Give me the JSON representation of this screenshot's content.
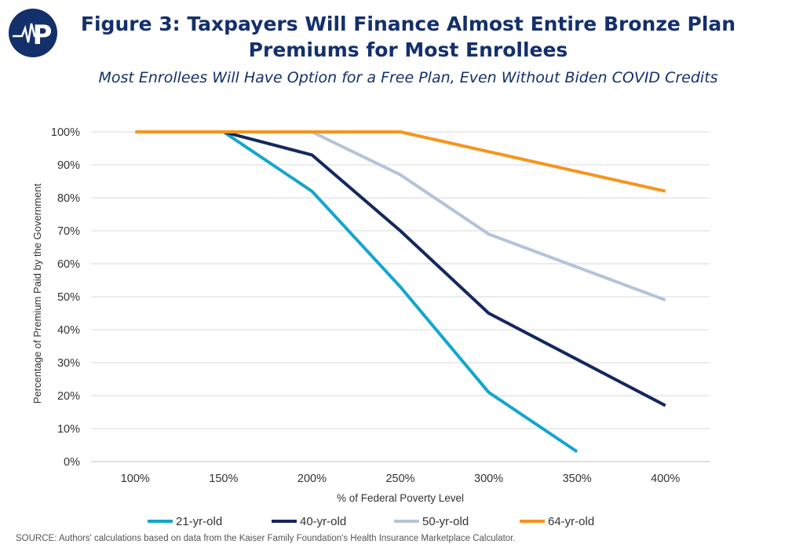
{
  "title": "Figure 3: Taxpayers Will Finance Almost Entire Bronze Plan Premiums for Most Enrollees",
  "subtitle": "Most Enrollees Will Have Option for a Free Plan, Even Without Biden COVID Credits",
  "source": "SOURCE: Authors' calculations based on data from the Kaiser Family Foundation's Health Insurance Marketplace Calculator.",
  "logo": {
    "icon": "paragon-heartbeat-logo-icon",
    "letter": "P",
    "bg_color": "#14306b"
  },
  "chart_data": {
    "type": "line",
    "title": "Figure 3: Taxpayers Will Finance Almost Entire Bronze Plan Premiums for Most Enrollees",
    "xlabel": "% of Federal Poverty Level",
    "ylabel": "Percentage of Premium Paid by the Government",
    "categories": [
      "100%",
      "150%",
      "200%",
      "250%",
      "300%",
      "350%",
      "400%"
    ],
    "y_ticks": [
      "0%",
      "10%",
      "20%",
      "30%",
      "40%",
      "50%",
      "60%",
      "70%",
      "80%",
      "90%",
      "100%"
    ],
    "ylim": [
      0,
      100
    ],
    "grid": true,
    "legend": "bottom",
    "series": [
      {
        "name": "21-yr-old",
        "color": "#12a6cf",
        "values": [
          null,
          100,
          82,
          53,
          21,
          3,
          null
        ]
      },
      {
        "name": "40-yr-old",
        "color": "#14285e",
        "values": [
          null,
          100,
          93,
          70,
          45,
          31,
          17
        ]
      },
      {
        "name": "50-yr-old",
        "color": "#b3c4d9",
        "values": [
          null,
          null,
          100,
          87,
          69,
          59,
          49
        ]
      },
      {
        "name": "64-yr-old",
        "color": "#f7941d",
        "values": [
          100,
          100,
          100,
          100,
          94,
          88,
          82
        ]
      }
    ]
  }
}
